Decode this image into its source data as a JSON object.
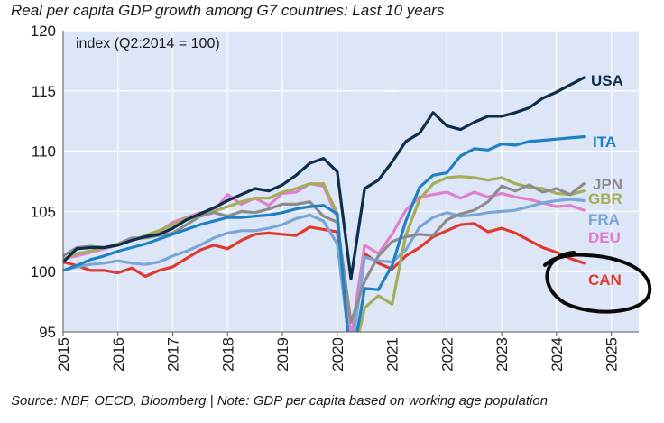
{
  "title": "Real per capita GDP growth among G7 countries: Last 10 years",
  "source": "Source: NBF, OECD, Bloomberg | Note: GDP per capita based on working age population",
  "chart_data": {
    "type": "line",
    "annotation": "index (Q2:2014 = 100)",
    "ylim": [
      95,
      120
    ],
    "xlim": [
      2015,
      2025.5
    ],
    "yticks": [
      95,
      100,
      105,
      110,
      115,
      120
    ],
    "xticks": [
      "2015",
      "2016",
      "2017",
      "2018",
      "2019",
      "2020",
      "2021",
      "2022",
      "2023",
      "2024",
      "2025"
    ],
    "grid": true,
    "background": "#dce6f6",
    "highlight_circle": "CAN",
    "series": [
      {
        "name": "USA",
        "color": "#0d2d4a",
        "label_color": "#0d2d4a",
        "x": [
          2015.0,
          2015.25,
          2015.5,
          2015.75,
          2016.0,
          2016.25,
          2016.5,
          2016.75,
          2017.0,
          2017.25,
          2017.5,
          2017.75,
          2018.0,
          2018.25,
          2018.5,
          2018.75,
          2019.0,
          2019.25,
          2019.5,
          2019.75,
          2020.0,
          2020.25,
          2020.5,
          2020.75,
          2021.0,
          2021.25,
          2021.5,
          2021.75,
          2022.0,
          2022.25,
          2022.5,
          2022.75,
          2023.0,
          2023.25,
          2023.5,
          2023.75,
          2024.0,
          2024.25,
          2024.5
        ],
        "y": [
          100.8,
          101.9,
          102.0,
          102.0,
          102.2,
          102.6,
          102.9,
          103.1,
          103.6,
          104.3,
          104.8,
          105.3,
          105.9,
          106.4,
          106.9,
          106.7,
          107.2,
          108.0,
          109.0,
          109.4,
          108.3,
          99.4,
          106.9,
          107.6,
          109.1,
          110.8,
          111.5,
          113.2,
          112.1,
          111.8,
          112.4,
          112.9,
          112.9,
          113.2,
          113.6,
          114.4,
          114.9,
          115.5,
          116.1
        ]
      },
      {
        "name": "ITA",
        "color": "#1f80c4",
        "label_color": "#1f80c4",
        "x": [
          2015.0,
          2015.25,
          2015.5,
          2015.75,
          2016.0,
          2016.25,
          2016.5,
          2016.75,
          2017.0,
          2017.25,
          2017.5,
          2017.75,
          2018.0,
          2018.25,
          2018.5,
          2018.75,
          2019.0,
          2019.25,
          2019.5,
          2019.75,
          2020.0,
          2020.25,
          2020.5,
          2020.75,
          2021.0,
          2021.25,
          2021.5,
          2021.75,
          2022.0,
          2022.25,
          2022.5,
          2022.75,
          2023.0,
          2023.25,
          2023.5,
          2023.75,
          2024.0,
          2024.25,
          2024.5
        ],
        "y": [
          100.1,
          100.5,
          101.0,
          101.3,
          101.7,
          102.0,
          102.3,
          102.7,
          103.1,
          103.5,
          103.9,
          104.2,
          104.5,
          104.5,
          104.6,
          104.7,
          104.9,
          105.2,
          105.4,
          105.5,
          104.8,
          92.0,
          98.6,
          98.5,
          100.5,
          104.2,
          107.0,
          108.0,
          108.2,
          109.6,
          110.2,
          110.1,
          110.6,
          110.5,
          110.8,
          110.9,
          111.0,
          111.1,
          111.2
        ]
      },
      {
        "name": "JPN",
        "color": "#8c8c8c",
        "label_color": "#8c8c8c",
        "x": [
          2015.0,
          2015.25,
          2015.5,
          2015.75,
          2016.0,
          2016.25,
          2016.5,
          2016.75,
          2017.0,
          2017.25,
          2017.5,
          2017.75,
          2018.0,
          2018.25,
          2018.5,
          2018.75,
          2019.0,
          2019.25,
          2019.5,
          2019.75,
          2020.0,
          2020.25,
          2020.5,
          2020.75,
          2021.0,
          2021.25,
          2021.5,
          2021.75,
          2022.0,
          2022.25,
          2022.5,
          2022.75,
          2023.0,
          2023.25,
          2023.5,
          2023.75,
          2024.0,
          2024.25,
          2024.5
        ],
        "y": [
          101.3,
          102.0,
          102.1,
          102.0,
          102.3,
          102.8,
          102.8,
          103.0,
          103.2,
          103.9,
          104.6,
          104.9,
          104.6,
          105.0,
          104.9,
          105.2,
          105.6,
          105.6,
          105.8,
          104.6,
          104.1,
          95.8,
          99.2,
          101.3,
          102.5,
          102.9,
          103.1,
          103.0,
          104.3,
          104.8,
          105.1,
          105.8,
          107.1,
          106.7,
          107.2,
          106.6,
          106.9,
          106.4,
          107.3
        ]
      },
      {
        "name": "GBR",
        "color": "#a5ad55",
        "label_color": "#a5ad55",
        "x": [
          2015.0,
          2015.25,
          2015.5,
          2015.75,
          2016.0,
          2016.25,
          2016.5,
          2016.75,
          2017.0,
          2017.25,
          2017.5,
          2017.75,
          2018.0,
          2018.25,
          2018.5,
          2018.75,
          2019.0,
          2019.25,
          2019.5,
          2019.75,
          2020.0,
          2020.25,
          2020.5,
          2020.75,
          2021.0,
          2021.25,
          2021.5,
          2021.75,
          2022.0,
          2022.25,
          2022.5,
          2022.75,
          2023.0,
          2023.25,
          2023.5,
          2023.75,
          2024.0,
          2024.25,
          2024.5
        ],
        "y": [
          101.0,
          101.5,
          101.7,
          102.0,
          102.2,
          102.6,
          103.0,
          103.4,
          103.9,
          104.4,
          104.8,
          105.0,
          105.4,
          105.8,
          106.1,
          106.1,
          106.6,
          106.9,
          107.3,
          107.3,
          104.8,
          92.0,
          97.0,
          98.0,
          97.3,
          103.0,
          106.0,
          107.3,
          107.8,
          107.9,
          107.8,
          107.6,
          107.8,
          107.3,
          107.0,
          106.9,
          106.5,
          106.4,
          106.7
        ]
      },
      {
        "name": "FRA",
        "color": "#7aa6d6",
        "label_color": "#7aa6d6",
        "x": [
          2015.0,
          2015.25,
          2015.5,
          2015.75,
          2016.0,
          2016.25,
          2016.5,
          2016.75,
          2017.0,
          2017.25,
          2017.5,
          2017.75,
          2018.0,
          2018.25,
          2018.5,
          2018.75,
          2019.0,
          2019.25,
          2019.5,
          2019.75,
          2020.0,
          2020.25,
          2020.5,
          2020.75,
          2021.0,
          2021.25,
          2021.5,
          2021.75,
          2022.0,
          2022.25,
          2022.5,
          2022.75,
          2023.0,
          2023.25,
          2023.5,
          2023.75,
          2024.0,
          2024.25,
          2024.5
        ],
        "y": [
          100.1,
          100.4,
          100.6,
          100.7,
          100.9,
          100.7,
          100.6,
          100.8,
          101.3,
          101.7,
          102.2,
          102.8,
          103.2,
          103.4,
          103.4,
          103.6,
          103.9,
          104.4,
          104.7,
          104.2,
          102.3,
          93.1,
          101.2,
          100.9,
          100.8,
          101.8,
          103.7,
          104.5,
          104.9,
          104.6,
          104.7,
          104.9,
          105.0,
          105.1,
          105.4,
          105.7,
          105.9,
          106.0,
          105.9
        ]
      },
      {
        "name": "DEU",
        "color": "#e07fcf",
        "label_color": "#e07fcf",
        "x": [
          2015.0,
          2015.25,
          2015.5,
          2015.75,
          2016.0,
          2016.25,
          2016.5,
          2016.75,
          2017.0,
          2017.25,
          2017.5,
          2017.75,
          2018.0,
          2018.25,
          2018.5,
          2018.75,
          2019.0,
          2019.25,
          2019.5,
          2019.75,
          2020.0,
          2020.25,
          2020.5,
          2020.75,
          2021.0,
          2021.25,
          2021.5,
          2021.75,
          2022.0,
          2022.25,
          2022.5,
          2022.75,
          2023.0,
          2023.25,
          2023.5,
          2023.75,
          2024.0,
          2024.25,
          2024.5
        ],
        "y": [
          101.1,
          101.3,
          101.6,
          101.9,
          102.2,
          102.6,
          102.9,
          103.3,
          104.1,
          104.5,
          104.9,
          105.0,
          106.4,
          105.6,
          106.1,
          105.5,
          106.5,
          106.6,
          107.3,
          107.1,
          104.5,
          94.5,
          102.2,
          101.5,
          103.1,
          105.1,
          106.2,
          106.4,
          106.6,
          106.1,
          106.6,
          106.2,
          106.5,
          106.2,
          106.0,
          105.7,
          105.4,
          105.5,
          105.1
        ]
      },
      {
        "name": "CAN",
        "color": "#e03a2e",
        "label_color": "#e03a2e",
        "x": [
          2015.0,
          2015.25,
          2015.5,
          2015.75,
          2016.0,
          2016.25,
          2016.5,
          2016.75,
          2017.0,
          2017.25,
          2017.5,
          2017.75,
          2018.0,
          2018.25,
          2018.5,
          2018.75,
          2019.0,
          2019.25,
          2019.5,
          2019.75,
          2020.0,
          2020.25,
          2020.5,
          2020.75,
          2021.0,
          2021.25,
          2021.5,
          2021.75,
          2022.0,
          2022.25,
          2022.5,
          2022.75,
          2023.0,
          2023.25,
          2023.5,
          2023.75,
          2024.0,
          2024.25,
          2024.5
        ],
        "y": [
          100.8,
          100.5,
          100.1,
          100.1,
          99.9,
          100.3,
          99.6,
          100.1,
          100.4,
          101.1,
          101.8,
          102.2,
          101.9,
          102.6,
          103.1,
          103.2,
          103.1,
          103.0,
          103.7,
          103.5,
          103.3,
          93.5,
          101.5,
          100.7,
          100.2,
          101.3,
          102.0,
          102.9,
          103.4,
          103.9,
          104.0,
          103.3,
          103.6,
          103.2,
          102.6,
          102.0,
          101.6,
          101.1,
          100.7
        ]
      }
    ]
  }
}
